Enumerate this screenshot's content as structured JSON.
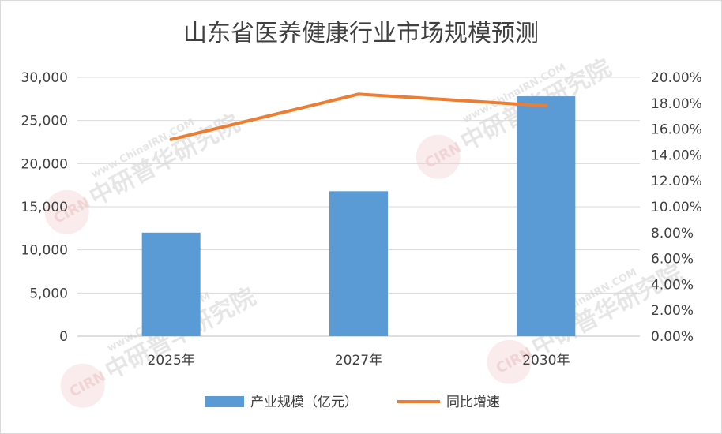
{
  "chart_data": {
    "type": "bar+line",
    "title": "山东省医养健康行业市场规模预测",
    "categories": [
      "2025年",
      "2027年",
      "2030年"
    ],
    "series": [
      {
        "name": "产业规模（亿元）",
        "type": "bar",
        "axis": "left",
        "color": "#5b9bd5",
        "values": [
          12000,
          16800,
          27800
        ]
      },
      {
        "name": "同比增速",
        "type": "line",
        "axis": "right",
        "color": "#ed7d31",
        "values": [
          15.2,
          18.7,
          17.8
        ]
      }
    ],
    "y_left": {
      "min": 0,
      "max": 30000,
      "step": 5000,
      "ticks": [
        "0",
        "5,000",
        "10,000",
        "15,000",
        "20,000",
        "25,000",
        "30,000"
      ]
    },
    "y_right": {
      "min": 0,
      "max": 20,
      "step": 2,
      "ticks": [
        "0.00%",
        "2.00%",
        "4.00%",
        "6.00%",
        "8.00%",
        "10.00%",
        "12.00%",
        "14.00%",
        "16.00%",
        "18.00%",
        "20.00%"
      ]
    },
    "grid": true,
    "legend_position": "bottom"
  },
  "watermark": {
    "domain": "www.ChinaIRN.COM",
    "brand": "中研普华研究院",
    "logo": "CIRN"
  }
}
